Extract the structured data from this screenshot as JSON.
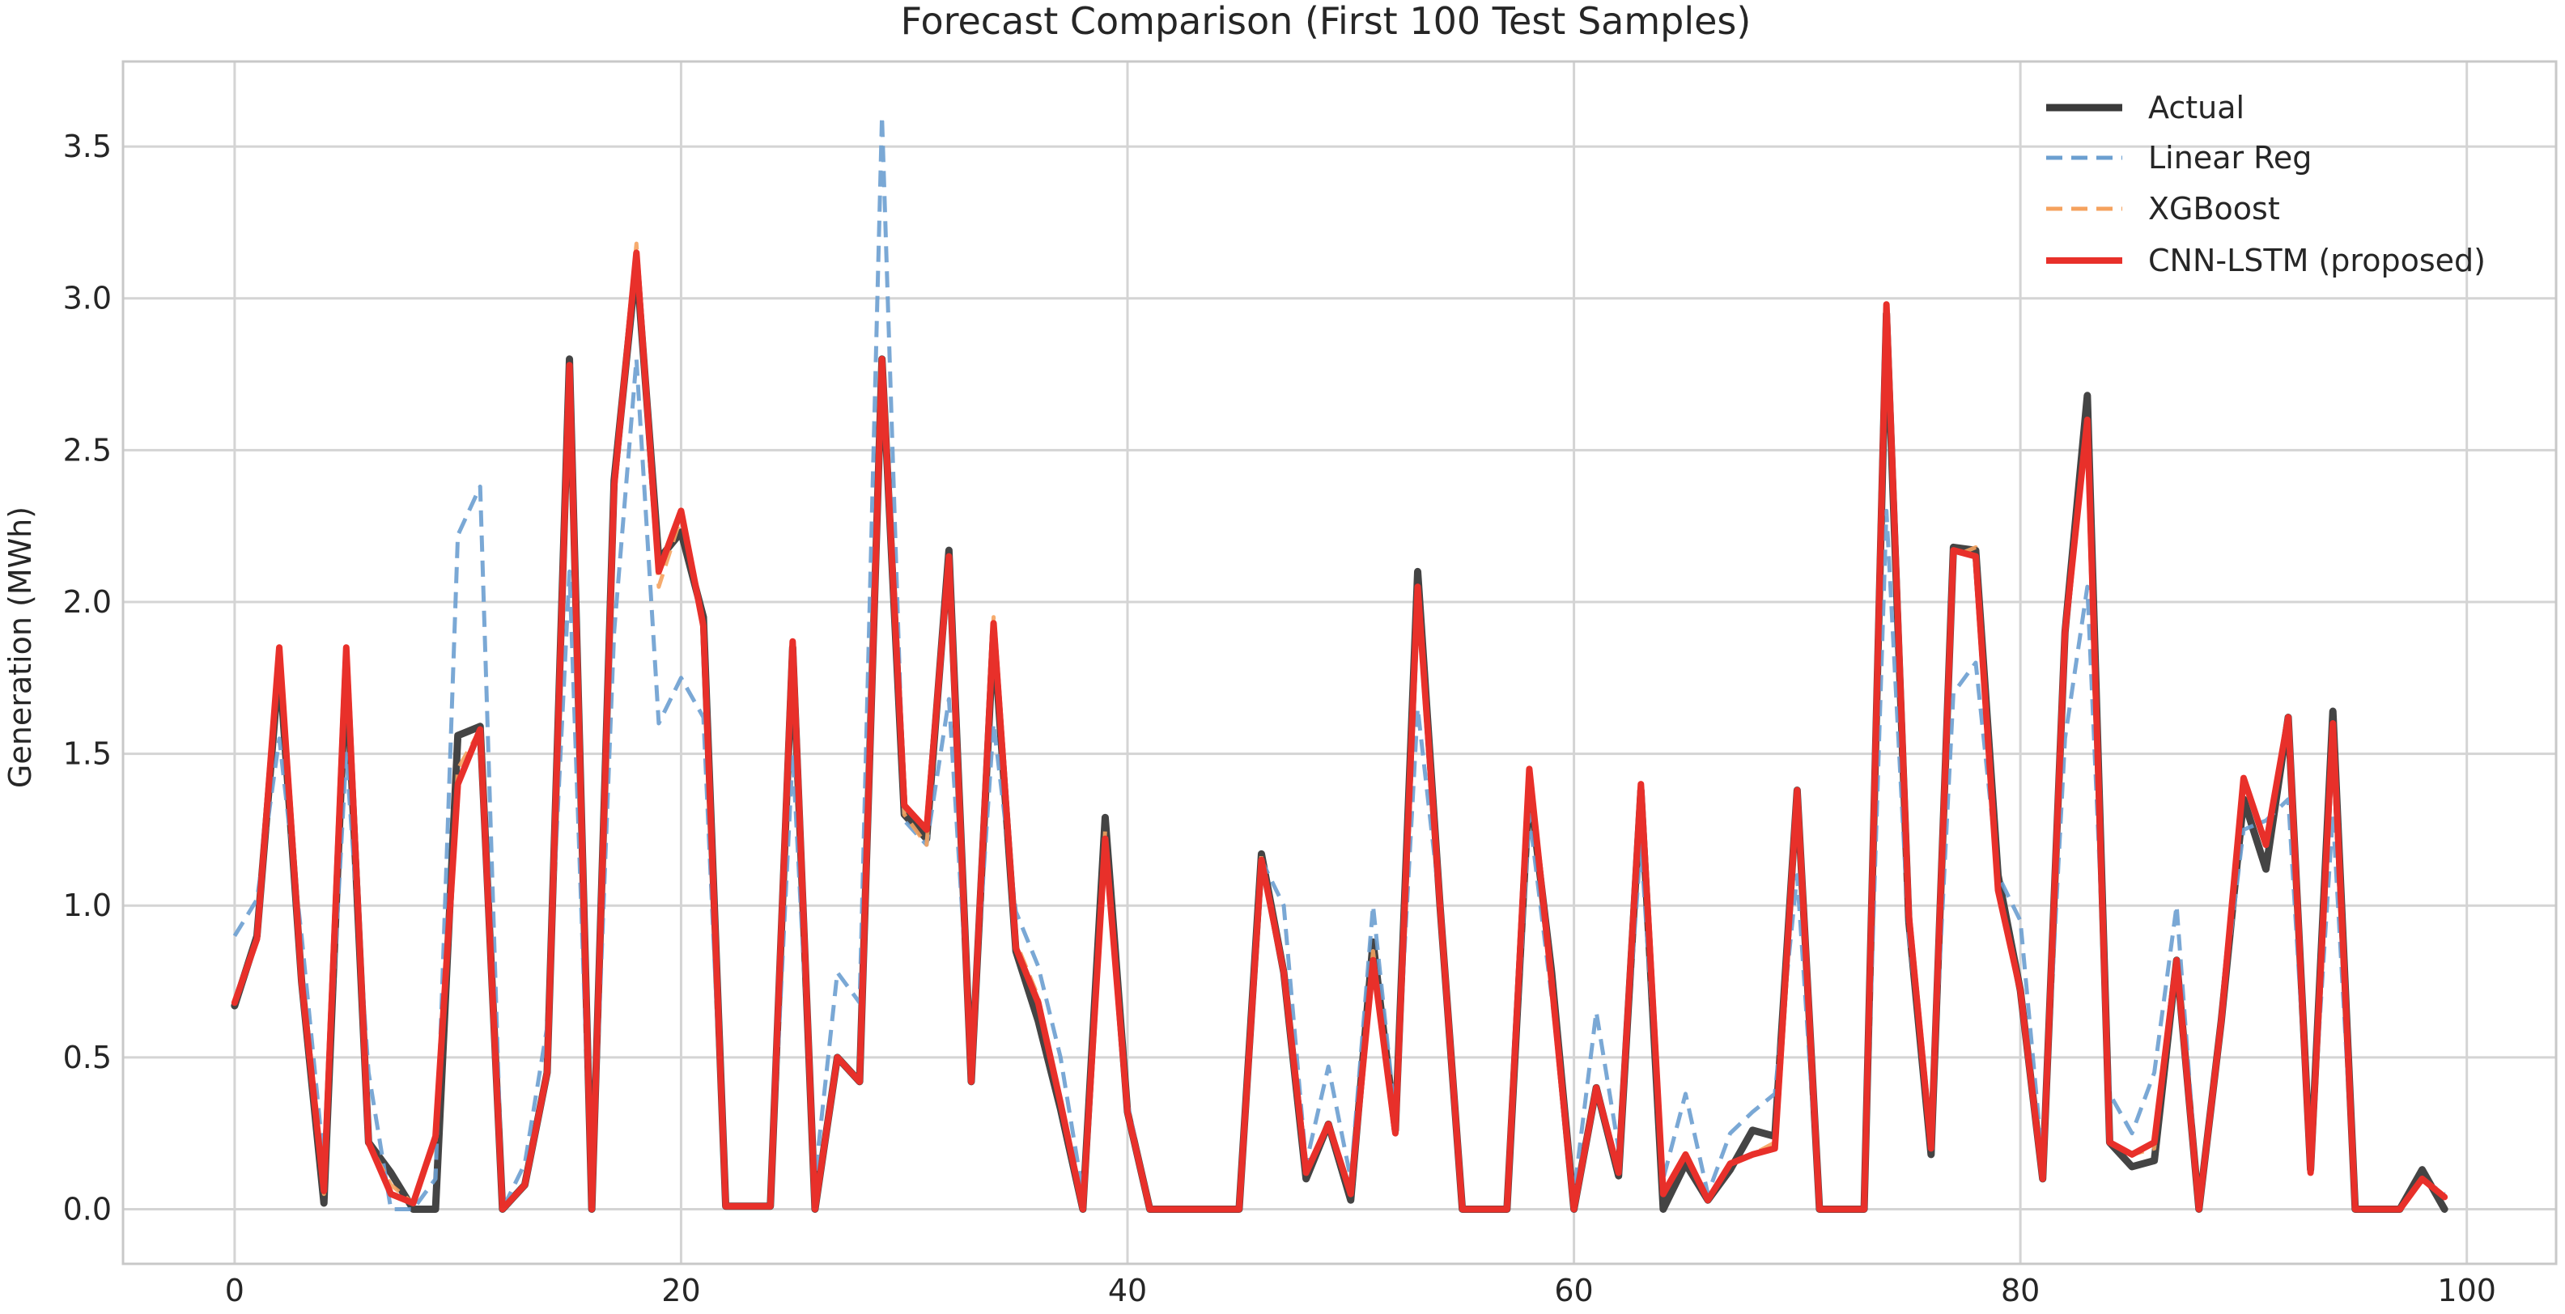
{
  "chart_data": {
    "type": "line",
    "title": "Forecast Comparison (First 100 Test Samples)",
    "xlabel": "",
    "ylabel": "Generation (MWh)",
    "xlim": [
      -5,
      104
    ],
    "ylim": [
      -0.18,
      3.78
    ],
    "xticks": [
      0,
      20,
      40,
      60,
      80,
      100
    ],
    "yticks": [
      0.0,
      0.5,
      1.0,
      1.5,
      2.0,
      2.5,
      3.0,
      3.5
    ],
    "xtick_labels": [
      "0",
      "20",
      "40",
      "60",
      "80",
      "100"
    ],
    "ytick_labels": [
      "0.0",
      "0.5",
      "1.0",
      "1.5",
      "2.0",
      "2.5",
      "3.0",
      "3.5"
    ],
    "grid": true,
    "legend_position": "top-right",
    "series": [
      {
        "name": "Actual",
        "color": "#3a3a3a",
        "style": "solid",
        "values": [
          0.67,
          0.9,
          1.8,
          0.75,
          0.02,
          1.8,
          0.22,
          0.12,
          0.0,
          0.0,
          1.56,
          1.59,
          0.0,
          0.08,
          0.45,
          2.8,
          0.0,
          2.4,
          3.12,
          2.14,
          2.23,
          1.95,
          0.01,
          0.01,
          0.01,
          1.85,
          0.0,
          0.5,
          0.42,
          2.8,
          1.3,
          1.22,
          2.17,
          0.42,
          1.9,
          0.85,
          0.62,
          0.33,
          0.0,
          1.29,
          0.32,
          0.0,
          0.0,
          0.0,
          0.0,
          0.0,
          1.17,
          0.78,
          0.1,
          0.28,
          0.03,
          0.88,
          0.26,
          2.1,
          1.0,
          0.0,
          0.0,
          0.0,
          1.4,
          0.78,
          0.0,
          0.4,
          0.11,
          1.38,
          0.0,
          0.15,
          0.03,
          0.13,
          0.26,
          0.24,
          1.38,
          0.0,
          0.0,
          0.0,
          2.95,
          0.95,
          0.18,
          2.18,
          2.17,
          1.1,
          0.72,
          0.1,
          1.9,
          2.68,
          0.22,
          0.14,
          0.16,
          0.82,
          0.0,
          0.62,
          1.35,
          1.12,
          1.62,
          0.13,
          1.64,
          0.0,
          0.0,
          0.0,
          0.13,
          0.0
        ]
      },
      {
        "name": "Linear Reg",
        "color": "#6b9fd0",
        "style": "dashed",
        "values": [
          0.9,
          1.02,
          1.55,
          0.9,
          0.15,
          1.5,
          0.45,
          0.0,
          0.0,
          0.1,
          2.22,
          2.38,
          0.0,
          0.15,
          0.6,
          2.1,
          0.0,
          1.9,
          2.8,
          1.6,
          1.75,
          1.62,
          0.01,
          0.01,
          0.01,
          1.5,
          0.1,
          0.78,
          0.68,
          3.6,
          1.28,
          1.2,
          1.68,
          0.5,
          1.6,
          0.98,
          0.8,
          0.5,
          0.05,
          1.2,
          0.35,
          0.0,
          0.0,
          0.0,
          0.0,
          0.0,
          1.15,
          1.0,
          0.15,
          0.47,
          0.1,
          1.0,
          0.3,
          1.65,
          1.0,
          0.0,
          0.0,
          0.0,
          1.3,
          0.7,
          0.05,
          0.65,
          0.2,
          1.2,
          0.1,
          0.38,
          0.05,
          0.25,
          0.32,
          0.38,
          1.1,
          0.0,
          0.0,
          0.0,
          2.3,
          0.9,
          0.25,
          1.7,
          1.8,
          1.1,
          0.95,
          0.15,
          1.55,
          2.05,
          0.38,
          0.25,
          0.45,
          1.0,
          0.0,
          0.65,
          1.25,
          1.28,
          1.35,
          0.15,
          1.3,
          0.0,
          0.0,
          0.0,
          0.1,
          0.05
        ]
      },
      {
        "name": "XGBoost",
        "color": "#f5a25e",
        "style": "dashed",
        "values": [
          0.68,
          0.9,
          1.82,
          0.74,
          0.05,
          1.82,
          0.22,
          0.08,
          0.02,
          0.22,
          1.45,
          1.58,
          0.0,
          0.08,
          0.45,
          2.75,
          0.0,
          2.38,
          3.18,
          2.05,
          2.28,
          1.92,
          0.01,
          0.01,
          0.01,
          1.85,
          0.0,
          0.5,
          0.42,
          2.8,
          1.3,
          1.2,
          2.17,
          0.42,
          1.95,
          0.88,
          0.7,
          0.35,
          0.0,
          1.25,
          0.32,
          0.0,
          0.0,
          0.0,
          0.0,
          0.0,
          1.17,
          0.78,
          0.12,
          0.28,
          0.05,
          0.85,
          0.25,
          2.05,
          1.0,
          0.0,
          0.0,
          0.0,
          1.45,
          0.78,
          0.0,
          0.4,
          0.12,
          1.38,
          0.05,
          0.18,
          0.03,
          0.15,
          0.18,
          0.22,
          1.38,
          0.0,
          0.0,
          0.0,
          2.98,
          0.95,
          0.2,
          2.15,
          2.18,
          1.05,
          0.72,
          0.1,
          1.9,
          2.6,
          0.22,
          0.18,
          0.2,
          0.82,
          0.0,
          0.62,
          1.42,
          1.2,
          1.62,
          0.12,
          1.6,
          0.0,
          0.0,
          0.0,
          0.1,
          0.04
        ]
      },
      {
        "name": "CNN-LSTM (proposed)",
        "color": "#e8302a",
        "style": "solid",
        "values": [
          0.68,
          0.89,
          1.85,
          0.75,
          0.06,
          1.85,
          0.22,
          0.05,
          0.02,
          0.24,
          1.4,
          1.58,
          0.0,
          0.08,
          0.45,
          2.78,
          0.0,
          2.38,
          3.15,
          2.1,
          2.3,
          1.92,
          0.01,
          0.01,
          0.01,
          1.87,
          0.0,
          0.5,
          0.42,
          2.8,
          1.33,
          1.25,
          2.15,
          0.42,
          1.93,
          0.86,
          0.68,
          0.35,
          0.0,
          1.22,
          0.32,
          0.0,
          0.0,
          0.0,
          0.0,
          0.0,
          1.15,
          0.78,
          0.12,
          0.28,
          0.05,
          0.82,
          0.25,
          2.05,
          1.0,
          0.0,
          0.0,
          0.0,
          1.45,
          0.75,
          0.0,
          0.4,
          0.12,
          1.4,
          0.05,
          0.18,
          0.03,
          0.15,
          0.18,
          0.2,
          1.38,
          0.0,
          0.0,
          0.0,
          2.98,
          0.97,
          0.2,
          2.17,
          2.15,
          1.05,
          0.72,
          0.1,
          1.9,
          2.6,
          0.22,
          0.18,
          0.22,
          0.82,
          0.0,
          0.62,
          1.42,
          1.2,
          1.62,
          0.12,
          1.6,
          0.0,
          0.0,
          0.0,
          0.1,
          0.04
        ]
      }
    ]
  }
}
